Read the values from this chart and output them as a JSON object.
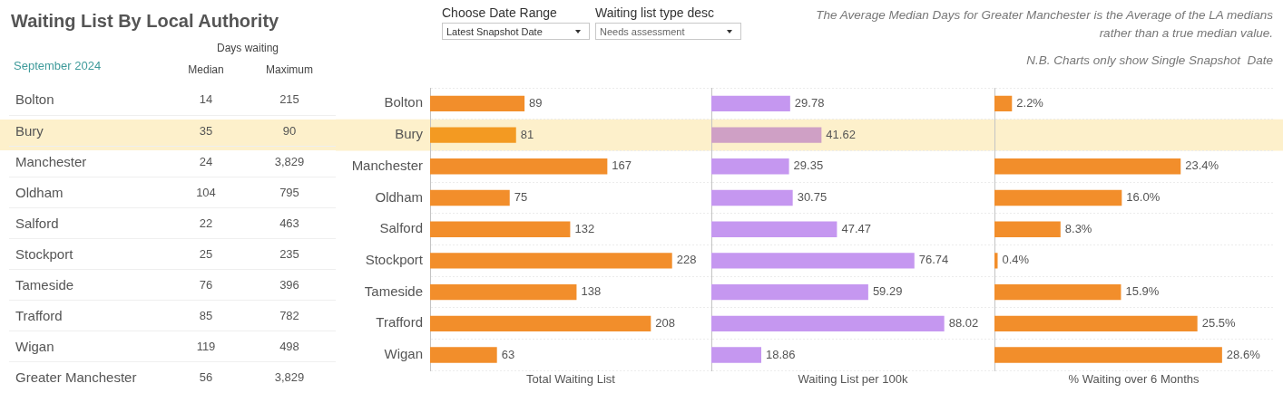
{
  "chart_data": [
    {
      "type": "other",
      "title": "Waiting List By Local Authority",
      "subtitle": "September 2024",
      "legend_title": "Days waiting",
      "categories": [
        "Bolton",
        "Bury",
        "Manchester",
        "Oldham",
        "Salford",
        "Stockport",
        "Tameside",
        "Trafford",
        "Wigan",
        "Greater Manchester"
      ],
      "series": [
        {
          "name": "Median",
          "values": [
            14,
            35,
            24,
            104,
            22,
            25,
            76,
            85,
            119,
            56
          ]
        },
        {
          "name": "Maximum",
          "values": [
            215,
            90,
            3829,
            795,
            463,
            235,
            396,
            782,
            498,
            3829
          ],
          "value_labels": [
            "215",
            "90",
            "3,829",
            "795",
            "463",
            "235",
            "396",
            "782",
            "498",
            "3,829"
          ]
        }
      ],
      "data_labels": true,
      "annotations": [
        "Choose Date Range",
        "Latest Snapshot Date",
        "Waiting list type desc",
        "Needs assessment",
        "The Average Median Days for Greater Manchester is the Average of the LA medians rather than a true median value.",
        "N.B. Charts only show Single Snapshot  Date"
      ]
    },
    {
      "type": "bar",
      "orientation": "horizontal",
      "categories": [
        "Bolton",
        "Bury",
        "Manchester",
        "Oldham",
        "Salford",
        "Stockport",
        "Tameside",
        "Trafford",
        "Wigan"
      ],
      "values": [
        89,
        81,
        167,
        75,
        132,
        228,
        138,
        208,
        63
      ],
      "colors": [
        "#f28e2b",
        "#f39a22",
        "#f28e2b",
        "#f28e2b",
        "#f28e2b",
        "#f28e2b",
        "#f28e2b",
        "#f28e2b",
        "#f28e2b"
      ],
      "xlabel": "Total Waiting List",
      "xlim": [
        0,
        265
      ],
      "data_labels": true,
      "tick_labels": "y",
      "grid": "y",
      "bands": [
        {
          "axis": "y",
          "from": "Bury",
          "to": "Bury",
          "color": "#fdf0cb"
        }
      ]
    },
    {
      "type": "bar",
      "orientation": "horizontal",
      "categories": [
        "Bolton",
        "Bury",
        "Manchester",
        "Oldham",
        "Salford",
        "Stockport",
        "Tameside",
        "Trafford",
        "Wigan"
      ],
      "values": [
        29.78,
        41.62,
        29.35,
        30.75,
        47.47,
        76.74,
        59.29,
        88.02,
        18.86
      ],
      "colors": [
        "#c597f0",
        "#cfa0c5",
        "#c597f0",
        "#c597f0",
        "#c597f0",
        "#c597f0",
        "#c597f0",
        "#c597f0",
        "#c597f0"
      ],
      "xlabel": "Waiting List per 100k",
      "xlim": [
        0,
        107
      ],
      "data_labels": true,
      "tick_labels": false,
      "grid": "y",
      "bands": [
        {
          "axis": "y",
          "from": "Bury",
          "to": "Bury",
          "color": "#fdf0cb"
        }
      ]
    },
    {
      "type": "bar",
      "orientation": "horizontal",
      "categories": [
        "Bolton",
        "Bury",
        "Manchester",
        "Oldham",
        "Salford",
        "Stockport",
        "Tameside",
        "Trafford",
        "Wigan"
      ],
      "values": [
        2.2,
        null,
        23.4,
        16.0,
        8.3,
        0.4,
        15.9,
        25.5,
        28.6
      ],
      "value_labels": [
        "2.2%",
        null,
        "23.4%",
        "16.0%",
        "8.3%",
        "0.4%",
        "15.9%",
        "25.5%",
        "28.6%"
      ],
      "color": "#f28e2b",
      "xlabel": "% Waiting over 6 Months",
      "xlim": [
        0,
        35
      ],
      "tick_labels": false,
      "grid": "y",
      "bands": [
        {
          "axis": "y",
          "from": "Bury",
          "to": "Bury",
          "color": "#fdf0cb"
        }
      ]
    }
  ]
}
